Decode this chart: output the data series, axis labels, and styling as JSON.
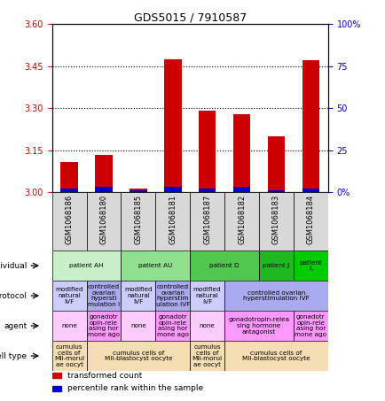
{
  "title": "GDS5015 / 7910587",
  "samples": [
    "GSM1068186",
    "GSM1068180",
    "GSM1068185",
    "GSM1068181",
    "GSM1068187",
    "GSM1068182",
    "GSM1068183",
    "GSM1068184"
  ],
  "red_values": [
    3.108,
    3.135,
    3.015,
    3.475,
    3.29,
    3.28,
    3.2,
    3.47
  ],
  "blue_values": [
    3.015,
    3.02,
    3.008,
    3.02,
    3.015,
    3.02,
    3.008,
    3.015
  ],
  "ylim_left": [
    3.0,
    3.6
  ],
  "ylim_right": [
    0,
    100
  ],
  "yticks_left": [
    3.0,
    3.15,
    3.3,
    3.45,
    3.6
  ],
  "yticks_right": [
    0,
    25,
    50,
    75,
    100
  ],
  "ytick_labels_right": [
    "0%",
    "25",
    "50",
    "75",
    "100%"
  ],
  "bar_width": 0.5,
  "individual": {
    "cells": [
      {
        "label": "patient AH",
        "cols": [
          0,
          1
        ],
        "color": "#c8f0c8"
      },
      {
        "label": "patient AU",
        "cols": [
          2,
          3
        ],
        "color": "#90e090"
      },
      {
        "label": "patient D",
        "cols": [
          4,
          5
        ],
        "color": "#50c850"
      },
      {
        "label": "patient J",
        "cols": [
          6
        ],
        "color": "#20b820"
      },
      {
        "label": "patient\nL",
        "cols": [
          7
        ],
        "color": "#00cc00"
      }
    ]
  },
  "protocol": {
    "cells": [
      {
        "label": "modified\nnatural\nIVF",
        "cols": [
          0
        ],
        "color": "#ccccff"
      },
      {
        "label": "controlled\novarian\nhypersti\nmulation I",
        "cols": [
          1
        ],
        "color": "#aaaaee"
      },
      {
        "label": "modified\nnatural\nIVF",
        "cols": [
          2
        ],
        "color": "#ccccff"
      },
      {
        "label": "controlled\novarian\nhyperstim\nulation IVF",
        "cols": [
          3
        ],
        "color": "#aaaaee"
      },
      {
        "label": "modified\nnatural\nIVF",
        "cols": [
          4
        ],
        "color": "#ccccff"
      },
      {
        "label": "controlled ovarian\nhyperstimulation IVF",
        "cols": [
          5,
          6,
          7
        ],
        "color": "#aaaaee"
      }
    ]
  },
  "agent": {
    "cells": [
      {
        "label": "none",
        "cols": [
          0
        ],
        "color": "#ffccff"
      },
      {
        "label": "gonadotr\nopin-rele\nasing hor\nmone ago",
        "cols": [
          1
        ],
        "color": "#ff99ff"
      },
      {
        "label": "none",
        "cols": [
          2
        ],
        "color": "#ffccff"
      },
      {
        "label": "gonadotr\nopin-rele\nasing hor\nmone ago",
        "cols": [
          3
        ],
        "color": "#ff99ff"
      },
      {
        "label": "none",
        "cols": [
          4
        ],
        "color": "#ffccff"
      },
      {
        "label": "gonadotropin-relea\nsing hormone\nantagonist",
        "cols": [
          5,
          6
        ],
        "color": "#ff99ff"
      },
      {
        "label": "gonadotr\nopin-rele\nasing hor\nmone ago",
        "cols": [
          7
        ],
        "color": "#ff99ff"
      }
    ]
  },
  "celltype": {
    "cells": [
      {
        "label": "cumulus\ncells of\nMII-morul\nae oocyt",
        "cols": [
          0
        ],
        "color": "#f5deb3"
      },
      {
        "label": "cumulus cells of\nMII-blastocyst oocyte",
        "cols": [
          1,
          2,
          3
        ],
        "color": "#f5deb3"
      },
      {
        "label": "cumulus\ncells of\nMII-morul\nae oocyt",
        "cols": [
          4
        ],
        "color": "#f5deb3"
      },
      {
        "label": "cumulus cells of\nMII-blastocyst oocyte",
        "cols": [
          5,
          6,
          7
        ],
        "color": "#f5deb3"
      }
    ]
  },
  "legend": [
    {
      "color": "#cc0000",
      "label": "transformed count"
    },
    {
      "color": "#0000cc",
      "label": "percentile rank within the sample"
    }
  ],
  "label_color_left": "#cc0000",
  "label_color_right": "#0000cc"
}
